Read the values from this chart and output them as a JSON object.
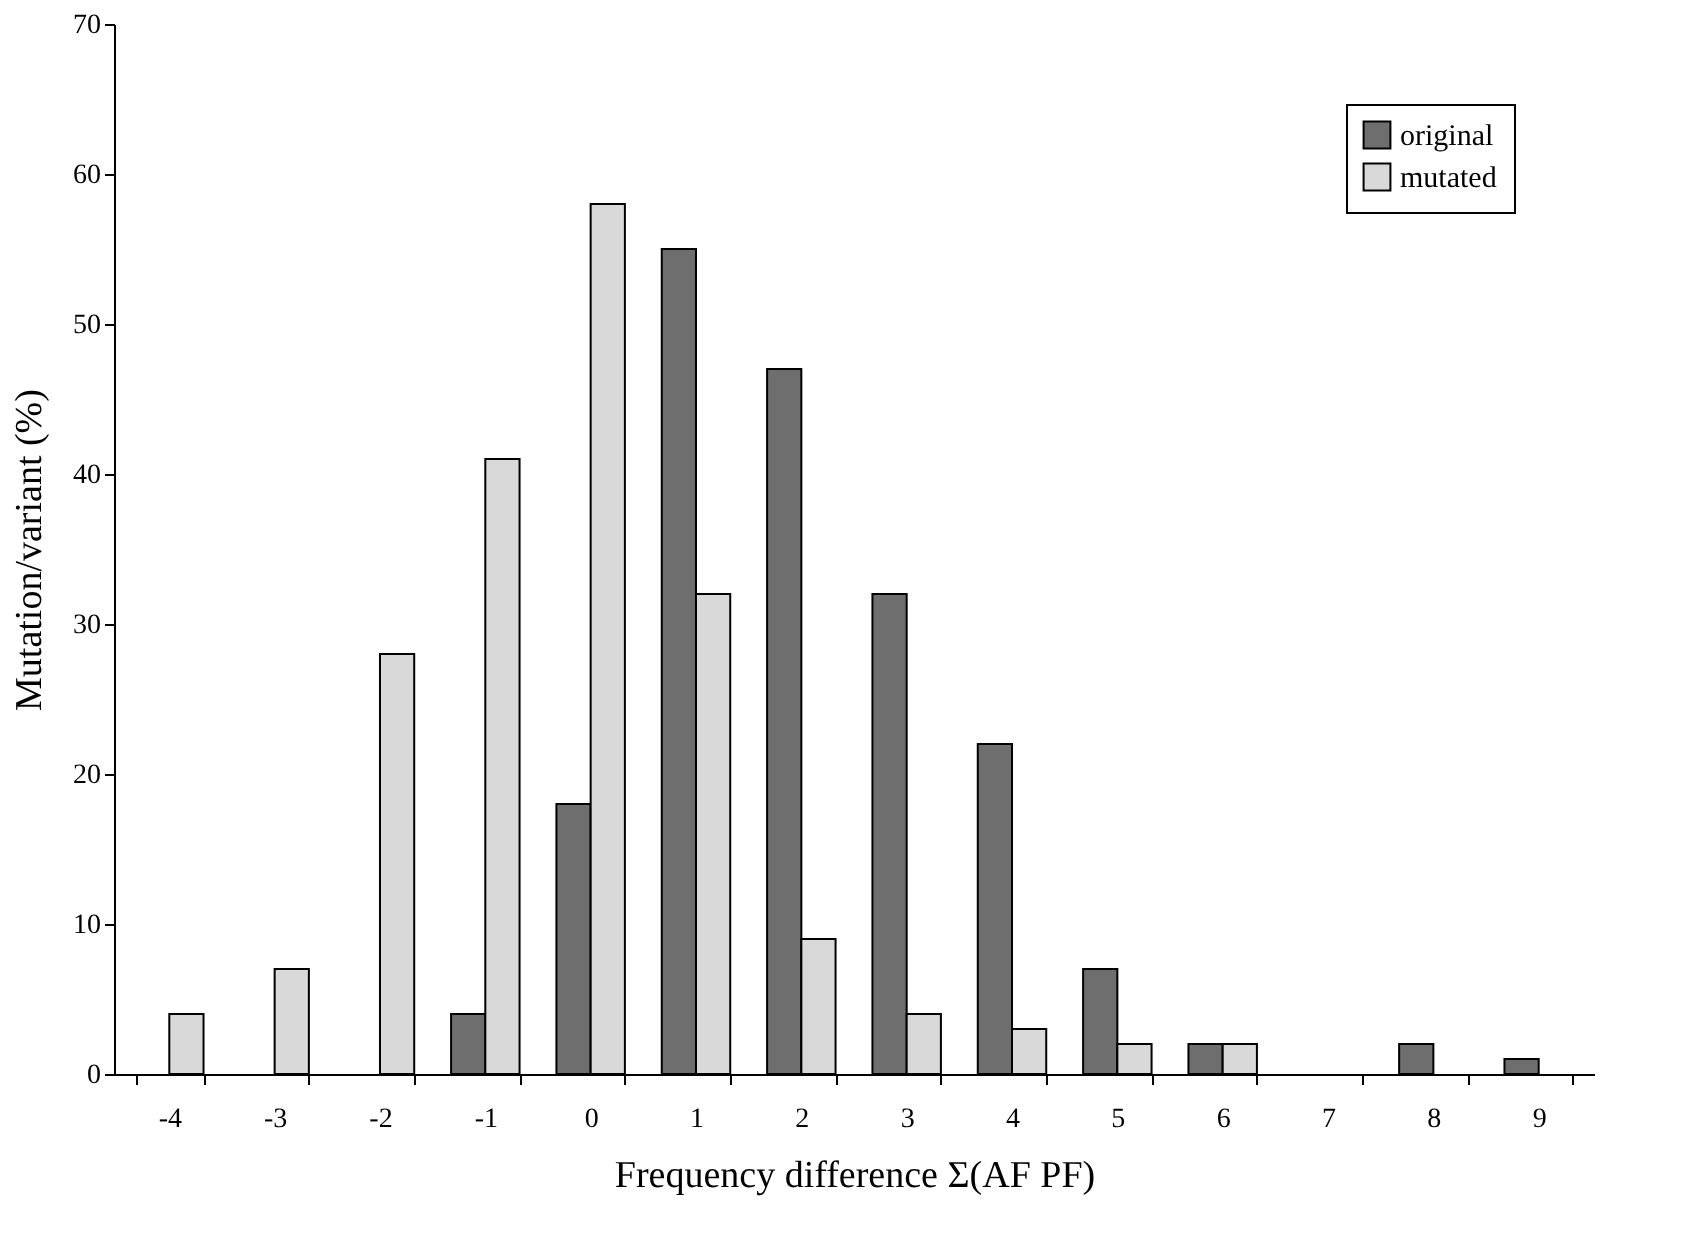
{
  "chart_data": {
    "type": "bar",
    "xlabel": "Frequency difference Σ(AF   PF)",
    "ylabel": "Mutation/variant (%)",
    "categories": [
      "-4",
      "-3",
      "-2",
      "-1",
      "0",
      "1",
      "2",
      "3",
      "4",
      "5",
      "6",
      "7",
      "8",
      "9"
    ],
    "series": [
      {
        "name": "original",
        "color": "#6e6e6e",
        "values": [
          null,
          null,
          null,
          4,
          18,
          55,
          47,
          32,
          22,
          7,
          2,
          null,
          2,
          1
        ]
      },
      {
        "name": "mutated",
        "color": "#d9d9d9",
        "values": [
          4,
          7,
          28,
          41,
          58,
          32,
          9,
          4,
          3,
          2,
          2,
          null,
          null,
          null
        ]
      }
    ],
    "ylim": [
      0,
      70
    ],
    "yticks": [
      0,
      10,
      20,
      30,
      40,
      50,
      60,
      70
    ],
    "grid": false,
    "legend": "top right"
  }
}
